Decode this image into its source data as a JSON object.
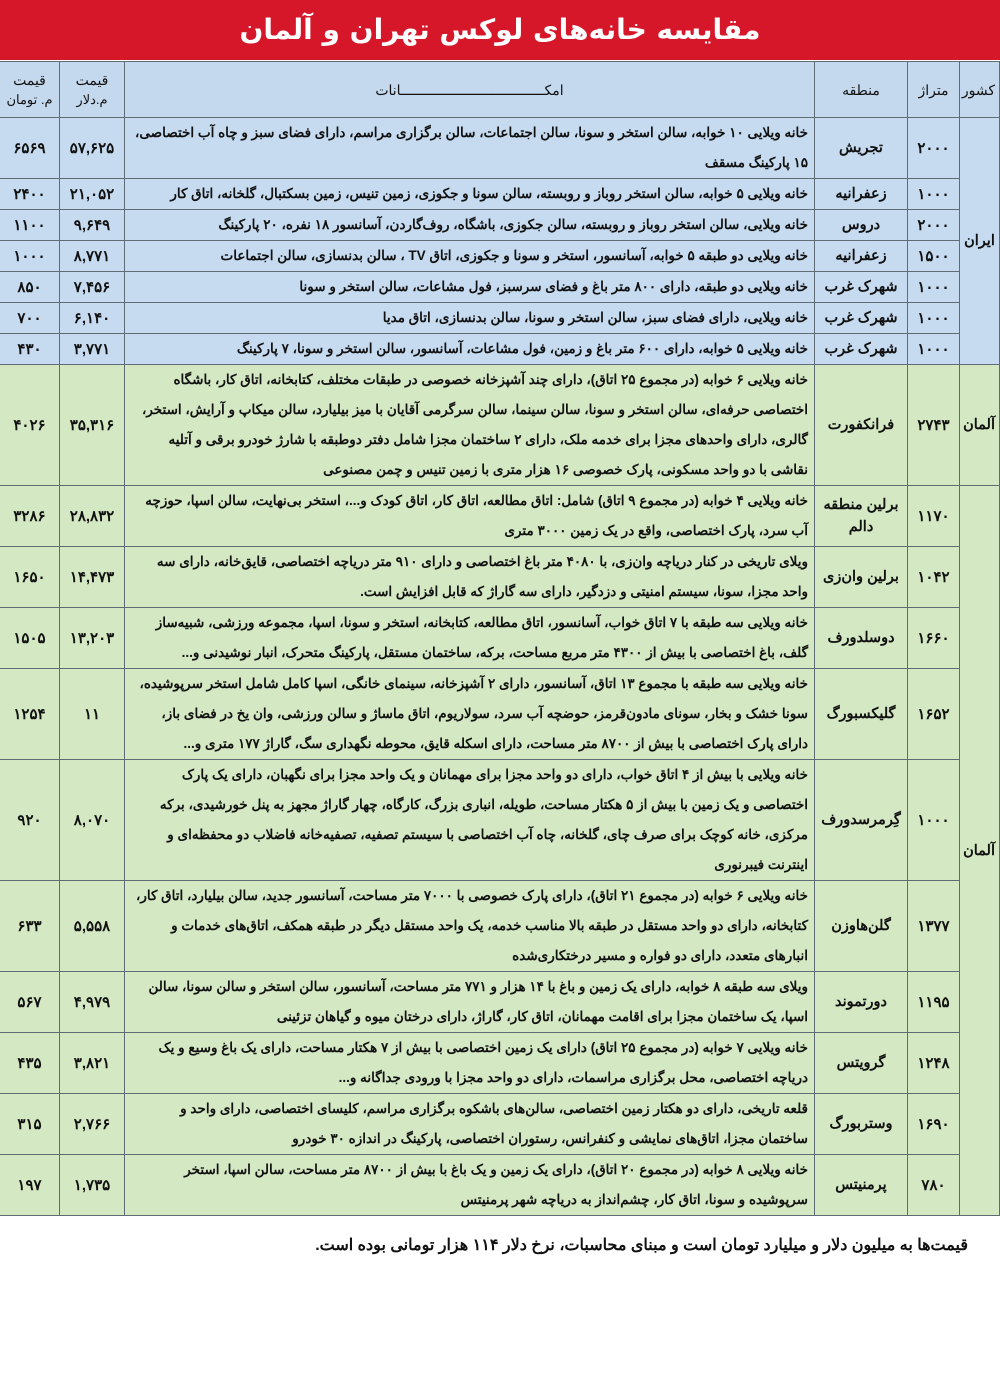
{
  "title": "مقایسه خانه‌های لوکس تهران و آلمان",
  "headers": {
    "country": "کشور",
    "area": "متراژ",
    "region": "منطقه",
    "amenities": "امکـــــــــــــــــــــــــــــــــــانات",
    "price_usd": "قیمت",
    "price_usd_unit": "م.دلار",
    "price_toman": "قیمت",
    "price_toman_unit": "م. تومان"
  },
  "colors": {
    "title_bg": "#d6172a",
    "iran_rows": "#c6dbf0",
    "germany_rows": "#d4e8c3"
  },
  "groups": [
    {
      "country": "ایران",
      "cls": "ir",
      "rows": [
        {
          "area": "۲۰۰۰",
          "region": "تجریش",
          "amenities": "خانه ویلایی ۱۰ خوابه، سالن استخر و سونا، سالن اجتماعات، سالن برگزاری مراسم، دارای فضای سبز و چاه آب اختصاصی، ۱۵ پارکینگ مسقف",
          "usd": "۵۷,۶۲۵",
          "toman": "۶۵۶۹"
        },
        {
          "area": "۱۰۰۰",
          "region": "زعفرانیه",
          "amenities": "خانه ویلایی ۵ خوابه، سالن استخر روباز و روبسته، سالن سونا و جکوزی، زمین تنیس، زمین بسکتبال، گلخانه، اتاق کار",
          "usd": "۲۱,۰۵۲",
          "toman": "۲۴۰۰"
        },
        {
          "area": "۲۰۰۰",
          "region": "دروس",
          "amenities": "خانه ویلایی، سالن استخر روباز و روبسته، سالن جکوزی، باشگاه، روف‌گاردن، آسانسور ۱۸ نفره، ۲۰ پارکینگ",
          "usd": "۹,۶۴۹",
          "toman": "۱۱۰۰"
        },
        {
          "area": "۱۵۰۰",
          "region": "زعفرانیه",
          "amenities": "خانه ویلایی دو طبقه ۵ خوابه، آسانسور، استخر و سونا و جکوزی، اتاق TV ، سالن بدنسازی، سالن اجتماعات",
          "usd": "۸,۷۷۱",
          "toman": "۱۰۰۰"
        },
        {
          "area": "۱۰۰۰",
          "region": "شهرک غرب",
          "amenities": "خانه ویلایی دو طبقه، دارای ۸۰۰ متر باغ و فضای سرسبز، فول مشاعات، سالن استخر و سونا",
          "usd": "۷,۴۵۶",
          "toman": "۸۵۰"
        },
        {
          "area": "۱۰۰۰",
          "region": "شهرک غرب",
          "amenities": "خانه ویلایی، دارای فضای سبز، سالن استخر و سونا، سالن بدنسازی، اتاق مدیا",
          "usd": "۶,۱۴۰",
          "toman": "۷۰۰"
        },
        {
          "area": "۱۰۰۰",
          "region": "شهرک غرب",
          "amenities": "خانه ویلایی ۵ خوابه، دارای ۶۰۰ متر باغ و زمین، فول مشاعات، آسانسور، سالن استخر و سونا، ۷ پارکینگ",
          "usd": "۳,۷۷۱",
          "toman": "۴۳۰"
        }
      ]
    },
    {
      "country": "آلمان",
      "cls": "de",
      "rows": [
        {
          "area": "۲۷۴۳",
          "region": "فرانکفورت",
          "amenities": "خانه ویلایی ۶ خوابه (در مجموع ۲۵ اتاق)، دارای چند آشپزخانه خصوصی در طبقات مختلف، کتابخانه، اتاق کار، باشگاه اختصاصی حرفه‌ای، سالن استخر و سونا، سالن سینما، سالن سرگرمی آقایان با میز بیلیارد، سالن میکاپ و آرایش، استخر، گالری، دارای واحدهای مجزا برای خدمه ملک، دارای ۲ ساختمان مجزا شامل دفتر دوطبقه با شارژ خودرو برقی و آتلیه نقاشی با دو واحد مسکونی، پارک خصوصی ۱۶ هزار متری با زمین تنیس و چمن مصنوعی",
          "usd": "۳۵,۳۱۶",
          "toman": "۴۰۲۶"
        }
      ]
    },
    {
      "country": "آلمان",
      "cls": "de",
      "rows": [
        {
          "area": "۱۱۷۰",
          "region": "برلین منطقه دالم",
          "amenities": "خانه ویلایی ۴ خوابه (در مجموع ۹ اتاق) شامل: اتاق مطالعه، اتاق کار، اتاق کودک و...، استخر بی‌نهایت، سالن اسپا، حوزچه آب سرد، پارک اختصاصی، واقع در یک زمین ۳۰۰۰ متری",
          "usd": "۲۸,۸۳۲",
          "toman": "۳۲۸۶"
        },
        {
          "area": "۱۰۴۲",
          "region": "برلین وان‌زی",
          "amenities": "ویلای تاریخی در کنار دریاچه وان‌زی، با ۴۰۸۰ متر باغ اختصاصی و دارای ۹۱۰ متر دریاچه اختصاصی، قایق‌خانه، دارای سه واحد مجزا، سونا، سیستم امنیتی و دزدگیر، دارای سه گاراژ که قابل افزایش است.",
          "usd": "۱۴,۴۷۳",
          "toman": "۱۶۵۰"
        },
        {
          "area": "۱۶۶۰",
          "region": "دوسلدورف",
          "amenities": "خانه ویلایی سه طبقه با ۷ اتاق خواب، آسانسور، اتاق مطالعه، کتابخانه، استخر و سونا، اسپا، مجموعه ورزشی، شبیه‌ساز گلف، باغ اختصاصی با بیش از ۴۳۰۰ متر مربع مساحت، برکه، ساختمان مستقل، پارکینگ متحرک، انبار نوشیدنی و...",
          "usd": "۱۳,۲۰۳",
          "toman": "۱۵۰۵"
        },
        {
          "area": "۱۶۵۲",
          "region": "گلیکسبورگ",
          "amenities": "خانه ویلایی سه طبقه با مجموع ۱۳ اتاق، آسانسور، دارای ۲ آشپزخانه، سینمای خانگی، اسپا کامل شامل استخر سرپوشیده، سونا خشک و بخار، سونای مادون‌قرمز، حوضچه آب سرد، سولاریوم، اتاق ماساژ و سالن ورزشی، وان یخ در فضای باز، دارای پارک اختصاصی با بیش از ۸۷۰۰ متر مساحت، دارای اسکله قایق، محوطه نگهداری سگ، گاراژ ۱۷۷ متری و...",
          "usd": "۱۱",
          "toman": "۱۲۵۴"
        },
        {
          "area": "۱۰۰۰",
          "region": "گِرمرسدورف",
          "amenities": "خانه ویلایی با بیش از ۴ اتاق خواب، دارای دو واحد مجزا برای مهمانان و یک واحد مجزا برای نگهبان، دارای یک پارک اختصاصی و یک زمین با بیش از ۵ هکتار مساحت، طویله، انباری بزرگ، کارگاه، چهار گاراژ مجهز به پنل خورشیدی، برکه مرکزی، خانه کوچک برای صرف چای، گلخانه، چاه آب اختصاصی با سیستم تصفیه، تصفیه‌خانه فاضلاب دو محفظه‌ای و اینترنت فیبرنوری",
          "usd": "۸,۰۷۰",
          "toman": "۹۲۰"
        },
        {
          "area": "۱۳۷۷",
          "region": "گلن‌هاوزن",
          "amenities": "خانه ویلایی ۶ خوابه (در مجموع ۲۱ اتاق)، دارای پارک خصوصی با ۷۰۰۰ متر مساحت، آسانسور جدید، سالن بیلیارد، اتاق کار، کتابخانه، دارای دو واحد مستقل در طبقه بالا مناسب خدمه، یک واحد مستقل دیگر در طبقه همکف، اتاق‌های خدمات و انبارهای متعدد، دارای دو فواره و مسیر درختکاری‌شده",
          "usd": "۵,۵۵۸",
          "toman": "۶۳۳"
        },
        {
          "area": "۱۱۹۵",
          "region": "دورتموند",
          "amenities": "ویلای سه طبقه ۸ خوابه، دارای یک زمین و باغ با ۱۴ هزار و ۷۷۱ متر مساحت، آسانسور، سالن استخر و سالن سونا، سالن اسپا، یک ساختمان مجزا برای اقامت مهمانان، اتاق کار، گاراژ، دارای درختان میوه و گیاهان تزئینی",
          "usd": "۴,۹۷۹",
          "toman": "۵۶۷"
        },
        {
          "area": "۱۲۴۸",
          "region": "گرویتس",
          "amenities": "خانه ویلایی ۷ خوابه (در مجموع ۲۵ اتاق) دارای یک زمین اختصاصی با بیش از ۷ هکتار مساحت، دارای یک باغ وسیع و یک دریاچه اختصاصی، محل برگزاری مراسمات، دارای دو واحد مجزا با ورودی جداگانه و...",
          "usd": "۳,۸۲۱",
          "toman": "۴۳۵"
        },
        {
          "area": "۱۶۹۰",
          "region": "وستربورگ",
          "amenities": "قلعه تاریخی، دارای دو هکتار زمین اختصاصی، سالن‌های باشکوه برگزاری مراسم، کلیسای اختصاصی، دارای واحد و ساختمان مجزا، اتاق‌های نمایشی و کنفرانس، رستوران اختصاصی، پارکینگ در اندازه ۳۰ خودرو",
          "usd": "۲,۷۶۶",
          "toman": "۳۱۵"
        },
        {
          "area": "۷۸۰",
          "region": "پرمنیتس",
          "amenities": "خانه ویلایی ۸ خوابه (در مجموع ۲۰ اتاق)، دارای یک زمین و یک باغ با بیش از ۸۷۰۰ متر مساحت، سالن اسپا، استخر سرپوشیده و سونا، اتاق کار، چشم‌انداز به دریاچه شهر پرمنیتس",
          "usd": "۱,۷۳۵",
          "toman": "۱۹۷"
        }
      ]
    }
  ],
  "footnote": "قیمت‌ها به میلیون دلار و میلیارد تومان است و مبنای محاسبات، نرخ دلار ۱۱۴ هزار تومانی بوده است."
}
